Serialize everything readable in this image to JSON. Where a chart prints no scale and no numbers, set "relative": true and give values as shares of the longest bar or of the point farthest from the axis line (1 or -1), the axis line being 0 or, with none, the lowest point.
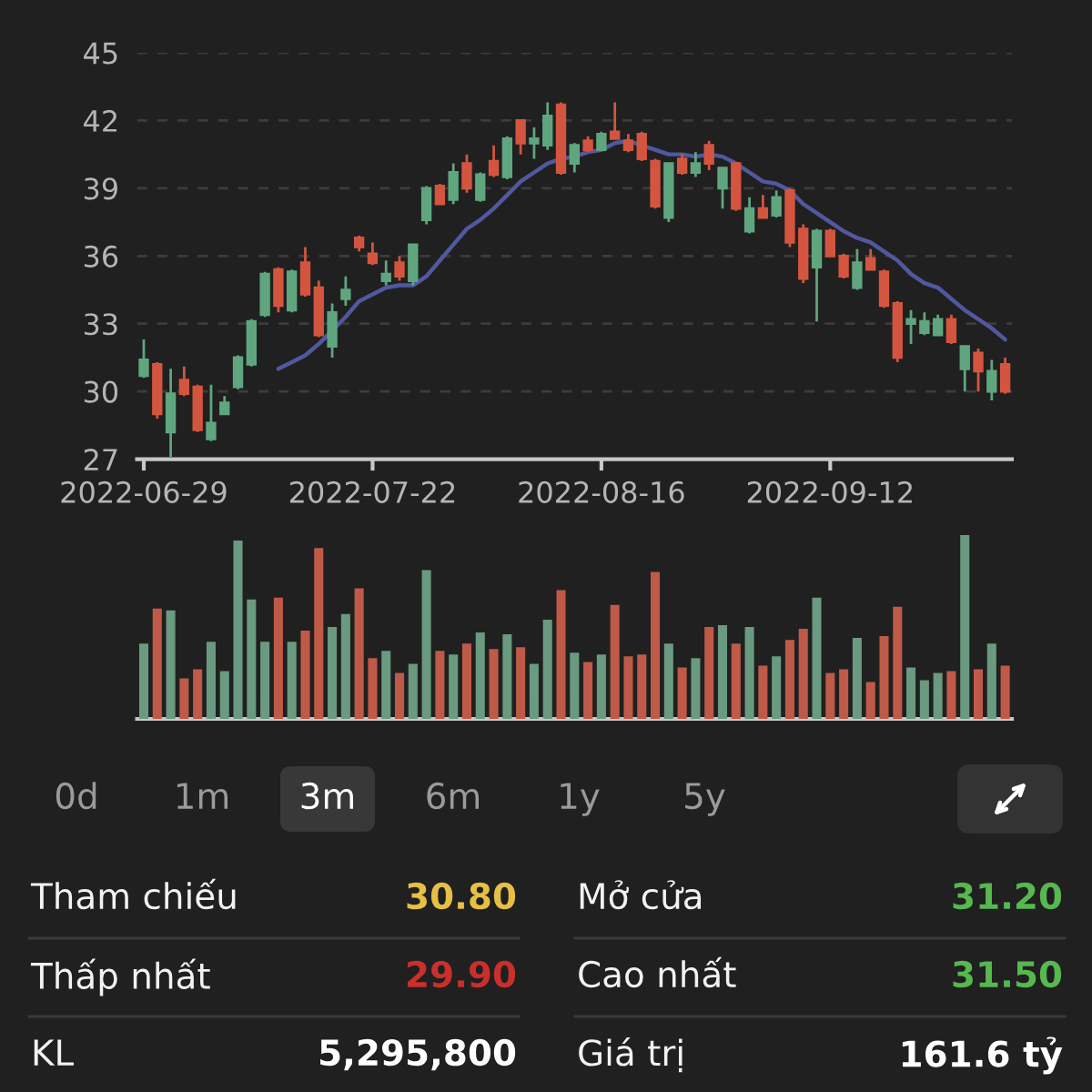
{
  "chart_data": [
    {
      "type": "candlestick",
      "categories": [
        "2022-06-29",
        null,
        null,
        null,
        null,
        null,
        null,
        null,
        null,
        null,
        null,
        null,
        null,
        null,
        null,
        null,
        null,
        "2022-07-22",
        null,
        null,
        null,
        null,
        null,
        null,
        null,
        null,
        null,
        null,
        null,
        null,
        null,
        null,
        null,
        null,
        "2022-08-16",
        null,
        null,
        null,
        null,
        null,
        null,
        null,
        null,
        null,
        null,
        null,
        null,
        null,
        null,
        null,
        null,
        "2022-09-12",
        null,
        null,
        null,
        null,
        null,
        null,
        null,
        null,
        null,
        null,
        null,
        null,
        null
      ],
      "ohlc": [
        [
          30.7,
          32.3,
          30.6,
          31.4
        ],
        [
          31.2,
          31.3,
          28.8,
          29.0
        ],
        [
          28.2,
          31.0,
          27.1,
          29.9
        ],
        [
          30.5,
          31.1,
          29.8,
          29.9
        ],
        [
          30.2,
          30.3,
          28.2,
          28.3
        ],
        [
          27.9,
          30.3,
          27.8,
          28.6
        ],
        [
          29.0,
          29.8,
          29.0,
          29.5
        ],
        [
          30.2,
          31.6,
          30.1,
          31.5
        ],
        [
          31.2,
          33.2,
          31.1,
          33.1
        ],
        [
          33.4,
          35.3,
          33.3,
          35.2
        ],
        [
          35.4,
          35.5,
          33.5,
          33.8
        ],
        [
          33.6,
          35.4,
          33.5,
          35.3
        ],
        [
          35.7,
          36.4,
          34.2,
          34.3
        ],
        [
          34.6,
          34.9,
          32.4,
          32.5
        ],
        [
          32.0,
          33.9,
          31.5,
          33.5
        ],
        [
          34.1,
          35.1,
          33.8,
          34.5
        ],
        [
          36.8,
          36.9,
          36.2,
          36.4
        ],
        [
          36.1,
          36.6,
          35.6,
          35.7
        ],
        [
          34.9,
          35.8,
          34.7,
          35.2
        ],
        [
          35.7,
          36.0,
          34.9,
          35.1
        ],
        [
          34.9,
          36.5,
          34.7,
          36.5
        ],
        [
          37.6,
          39.1,
          37.4,
          39.0
        ],
        [
          39.1,
          39.2,
          38.3,
          38.3
        ],
        [
          38.5,
          40.1,
          38.3,
          39.7
        ],
        [
          40.1,
          40.5,
          38.8,
          39.0
        ],
        [
          38.5,
          39.7,
          38.4,
          39.6
        ],
        [
          40.2,
          40.9,
          39.5,
          39.6
        ],
        [
          39.5,
          41.3,
          39.4,
          41.2
        ],
        [
          42.0,
          42.0,
          40.5,
          41.0
        ],
        [
          41.0,
          41.7,
          40.3,
          41.2
        ],
        [
          40.9,
          42.8,
          40.7,
          42.2
        ],
        [
          42.7,
          42.8,
          39.6,
          39.7
        ],
        [
          40.1,
          41.0,
          39.7,
          40.9
        ],
        [
          41.1,
          41.3,
          40.6,
          40.7
        ],
        [
          40.7,
          41.5,
          40.7,
          41.4
        ],
        [
          41.5,
          42.8,
          41.2,
          41.2
        ],
        [
          41.1,
          41.4,
          40.6,
          40.7
        ],
        [
          41.4,
          41.5,
          40.2,
          40.3
        ],
        [
          40.2,
          40.3,
          38.1,
          38.2
        ],
        [
          37.7,
          40.1,
          37.5,
          40.1
        ],
        [
          40.3,
          40.5,
          39.6,
          39.7
        ],
        [
          39.7,
          40.6,
          39.5,
          40.1
        ],
        [
          40.9,
          41.1,
          39.8,
          40.1
        ],
        [
          39.0,
          39.9,
          38.1,
          39.9
        ],
        [
          40.1,
          40.1,
          38.0,
          38.1
        ],
        [
          37.1,
          38.6,
          37.0,
          38.1
        ],
        [
          38.1,
          38.7,
          37.7,
          37.7
        ],
        [
          37.8,
          38.9,
          37.7,
          38.6
        ],
        [
          38.9,
          39.0,
          36.4,
          36.6
        ],
        [
          37.2,
          37.4,
          34.8,
          35.0
        ],
        [
          35.5,
          37.2,
          33.1,
          37.1
        ],
        [
          37.1,
          37.2,
          36.0,
          36.0
        ],
        [
          36.0,
          36.1,
          35.0,
          35.1
        ],
        [
          34.6,
          36.3,
          34.5,
          35.7
        ],
        [
          35.9,
          36.3,
          35.4,
          35.4
        ],
        [
          35.3,
          35.4,
          33.7,
          33.8
        ],
        [
          33.9,
          34.0,
          31.3,
          31.5
        ],
        [
          33.0,
          33.6,
          32.1,
          33.2
        ],
        [
          32.6,
          33.5,
          32.5,
          33.1
        ],
        [
          32.5,
          33.4,
          32.5,
          33.2
        ],
        [
          33.2,
          33.4,
          32.1,
          32.2
        ],
        [
          31.0,
          32.0,
          30.0,
          32.0
        ],
        [
          31.7,
          31.9,
          30.0,
          30.9
        ],
        [
          30.0,
          31.4,
          29.6,
          30.9
        ],
        [
          31.2,
          31.5,
          29.9,
          30.0
        ]
      ],
      "colors": [
        "#5fa67f",
        "#d4553f",
        "#5fa67f",
        "#d4553f",
        "#d4553f",
        "#5fa67f",
        "#5fa67f",
        "#5fa67f",
        "#5fa67f",
        "#5fa67f",
        "#d4553f",
        "#5fa67f",
        "#d4553f",
        "#d4553f",
        "#5fa67f",
        "#5fa67f",
        "#d4553f",
        "#d4553f",
        "#5fa67f",
        "#d4553f",
        "#5fa67f",
        "#5fa67f",
        "#d4553f",
        "#5fa67f",
        "#d4553f",
        "#5fa67f",
        "#d4553f",
        "#5fa67f",
        "#d4553f",
        "#5fa67f",
        "#5fa67f",
        "#d4553f",
        "#5fa67f",
        "#d4553f",
        "#5fa67f",
        "#d4553f",
        "#d4553f",
        "#d4553f",
        "#d4553f",
        "#5fa67f",
        "#d4553f",
        "#5fa67f",
        "#d4553f",
        "#5fa67f",
        "#d4553f",
        "#5fa67f",
        "#d4553f",
        "#5fa67f",
        "#d4553f",
        "#d4553f",
        "#5fa67f",
        "#d4553f",
        "#d4553f",
        "#5fa67f",
        "#d4553f",
        "#d4553f",
        "#d4553f",
        "#5fa67f",
        "#5fa67f",
        "#5fa67f",
        "#d4553f",
        "#5fa67f",
        "#d4553f",
        "#5fa67f",
        "#d4553f"
      ],
      "series": [
        {
          "type": "line",
          "color": "#5158a0",
          "values": [
            null,
            null,
            null,
            null,
            null,
            null,
            null,
            null,
            null,
            null,
            31.0,
            31.3,
            31.6,
            32.1,
            32.7,
            33.3,
            34.0,
            34.3,
            34.6,
            34.7,
            34.7,
            35.1,
            35.8,
            36.5,
            37.2,
            37.6,
            38.1,
            38.7,
            39.3,
            39.7,
            40.1,
            40.3,
            40.4,
            40.6,
            40.7,
            41.0,
            41.1,
            40.9,
            40.7,
            40.5,
            40.5,
            40.4,
            40.5,
            40.4,
            40.1,
            39.7,
            39.3,
            39.2,
            38.9,
            38.3,
            37.9,
            37.5,
            37.1,
            36.8,
            36.6,
            36.2,
            35.8,
            35.2,
            34.8,
            34.6,
            34.1,
            33.6,
            33.2,
            32.8,
            32.3
          ]
        }
      ],
      "ylim": [
        27,
        45
      ],
      "yticks": [
        27,
        30,
        33,
        36,
        39,
        42,
        45
      ],
      "grid": "y"
    },
    {
      "type": "bar",
      "relative": true,
      "categories": [
        null,
        null,
        null,
        null,
        null,
        null,
        null,
        null,
        null,
        null,
        null,
        null,
        null,
        null,
        null,
        null,
        null,
        null,
        null,
        null,
        null,
        null,
        null,
        null,
        null,
        null,
        null,
        null,
        null,
        null,
        null,
        null,
        null,
        null,
        null,
        null,
        null,
        null,
        null,
        null,
        null,
        null,
        null,
        null,
        null,
        null,
        null,
        null,
        null,
        null,
        null,
        null,
        null,
        null,
        null,
        null,
        null,
        null,
        null,
        null,
        null,
        null,
        null,
        null,
        null
      ],
      "values": [
        0.41,
        0.6,
        0.59,
        0.22,
        0.27,
        0.42,
        0.26,
        0.97,
        0.65,
        0.42,
        0.66,
        0.42,
        0.48,
        0.93,
        0.5,
        0.57,
        0.71,
        0.33,
        0.37,
        0.25,
        0.3,
        0.81,
        0.37,
        0.35,
        0.41,
        0.47,
        0.38,
        0.46,
        0.39,
        0.3,
        0.54,
        0.7,
        0.36,
        0.31,
        0.35,
        0.62,
        0.34,
        0.35,
        0.8,
        0.41,
        0.28,
        0.33,
        0.5,
        0.51,
        0.41,
        0.5,
        0.29,
        0.34,
        0.43,
        0.49,
        0.66,
        0.25,
        0.27,
        0.44,
        0.2,
        0.45,
        0.61,
        0.28,
        0.21,
        0.25,
        0.26,
        1.0,
        0.27,
        0.41,
        0.29
      ],
      "colors": [
        "#6a9a80",
        "#c05a48",
        "#6a9a80",
        "#c05a48",
        "#c05a48",
        "#6a9a80",
        "#6a9a80",
        "#6a9a80",
        "#6a9a80",
        "#6a9a80",
        "#c05a48",
        "#6a9a80",
        "#c05a48",
        "#c05a48",
        "#6a9a80",
        "#6a9a80",
        "#c05a48",
        "#c05a48",
        "#6a9a80",
        "#c05a48",
        "#6a9a80",
        "#6a9a80",
        "#c05a48",
        "#6a9a80",
        "#c05a48",
        "#6a9a80",
        "#c05a48",
        "#6a9a80",
        "#c05a48",
        "#6a9a80",
        "#6a9a80",
        "#c05a48",
        "#6a9a80",
        "#c05a48",
        "#6a9a80",
        "#c05a48",
        "#c05a48",
        "#c05a48",
        "#c05a48",
        "#6a9a80",
        "#c05a48",
        "#6a9a80",
        "#c05a48",
        "#6a9a80",
        "#c05a48",
        "#6a9a80",
        "#c05a48",
        "#6a9a80",
        "#c05a48",
        "#c05a48",
        "#6a9a80",
        "#c05a48",
        "#c05a48",
        "#6a9a80",
        "#c05a48",
        "#c05a48",
        "#c05a48",
        "#6a9a80",
        "#6a9a80",
        "#6a9a80",
        "#c05a48",
        "#6a9a80",
        "#c05a48",
        "#6a9a80",
        "#c05a48"
      ]
    },
    {
      "type": "other",
      "annotations": [
        "0d",
        "1m",
        "3m",
        "6m",
        "1y",
        "5y"
      ],
      "colors": [
        "#9a9a9a",
        "#9a9a9a",
        "#ffffff",
        "#9a9a9a",
        "#9a9a9a",
        "#9a9a9a"
      ]
    },
    {
      "type": "other",
      "annotations": [
        "Tham chiếu",
        "30.80",
        "Mở cửa",
        "31.20",
        "Thấp nhất",
        "29.90",
        "Cao nhất",
        "31.50",
        "KL",
        "5,295,800",
        "Giá trị",
        "161.6 tỷ"
      ],
      "colors": [
        "#f2f2f2",
        "#e6bf45",
        "#f2f2f2",
        "#56b84f",
        "#f2f2f2",
        "#c9302c",
        "#f2f2f2",
        "#56b84f",
        "#f2f2f2",
        "#ffffff",
        "#f2f2f2",
        "#ffffff"
      ]
    }
  ]
}
